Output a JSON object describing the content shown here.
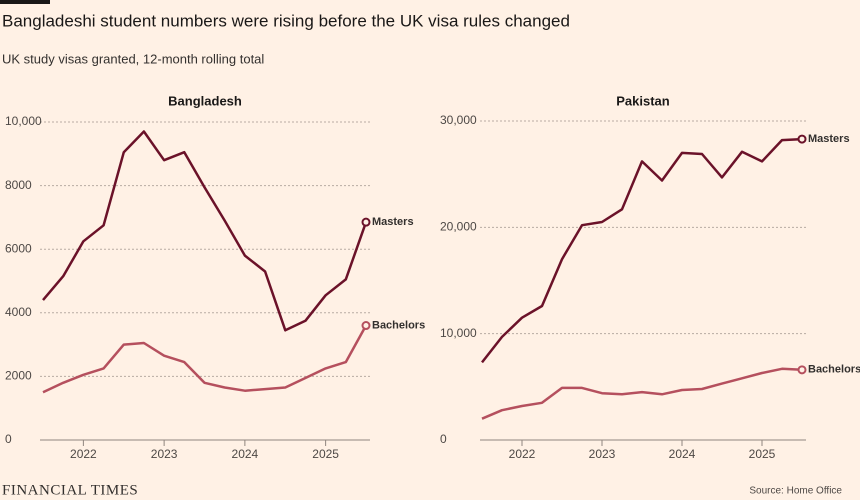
{
  "header": {
    "title": "Bangladeshi student numbers were rising before the UK visa rules changed",
    "subtitle": "UK study visas granted, 12-month rolling total"
  },
  "footer": {
    "brand": "FINANCIAL TIMES",
    "source": "Source: Home Office"
  },
  "chart_data": [
    {
      "type": "line",
      "title": "Bangladesh",
      "x": [
        2021.5,
        2021.75,
        2022,
        2022.25,
        2022.5,
        2022.75,
        2023,
        2023.25,
        2023.5,
        2023.75,
        2024,
        2024.25,
        2024.5,
        2024.75,
        2025,
        2025.25,
        2025.5
      ],
      "series": [
        {
          "name": "Masters",
          "color": "#6b1229",
          "values": [
            4400,
            5150,
            6250,
            6750,
            9050,
            9700,
            8800,
            9050,
            7950,
            6900,
            5800,
            5300,
            3450,
            3750,
            4550,
            5050,
            6850
          ]
        },
        {
          "name": "Bachelors",
          "color": "#b5505e",
          "values": [
            1500,
            1800,
            2050,
            2250,
            3000,
            3050,
            2650,
            2450,
            1800,
            1650,
            1550,
            1600,
            1650,
            1950,
            2250,
            2450,
            3600
          ]
        }
      ],
      "xlim": [
        2021.5,
        2025.5
      ],
      "xticks": [
        2022,
        2023,
        2024,
        2025
      ],
      "ylim": [
        0,
        10000
      ],
      "yticks": [
        0,
        2000,
        4000,
        6000,
        8000,
        {
          "value": 10000,
          "label": "10,000"
        }
      ],
      "grid": true
    },
    {
      "type": "line",
      "title": "Pakistan",
      "x": [
        2021.5,
        2021.75,
        2022,
        2022.25,
        2022.5,
        2022.75,
        2023,
        2023.25,
        2023.5,
        2023.75,
        2024,
        2024.25,
        2024.5,
        2024.75,
        2025,
        2025.25,
        2025.5
      ],
      "series": [
        {
          "name": "Masters",
          "color": "#6b1229",
          "values": [
            7300,
            9700,
            11500,
            12600,
            17000,
            20200,
            20500,
            21700,
            26200,
            24400,
            27000,
            26900,
            24700,
            27100,
            26200,
            28200,
            28300
          ]
        },
        {
          "name": "Bachelors",
          "color": "#b5505e",
          "values": [
            2000,
            2800,
            3200,
            3500,
            4900,
            4900,
            4400,
            4300,
            4500,
            4300,
            4700,
            4800,
            5300,
            5800,
            6300,
            6700,
            6600
          ]
        }
      ],
      "xlim": [
        2021.5,
        2025.5
      ],
      "xticks": [
        2022,
        2023,
        2024,
        2025
      ],
      "ylim": [
        0,
        30000
      ],
      "yticks": [
        0,
        {
          "value": 10000,
          "label": "10,000"
        },
        {
          "value": 20000,
          "label": "20,000"
        },
        {
          "value": 30000,
          "label": "30,000"
        }
      ],
      "grid": true
    }
  ]
}
